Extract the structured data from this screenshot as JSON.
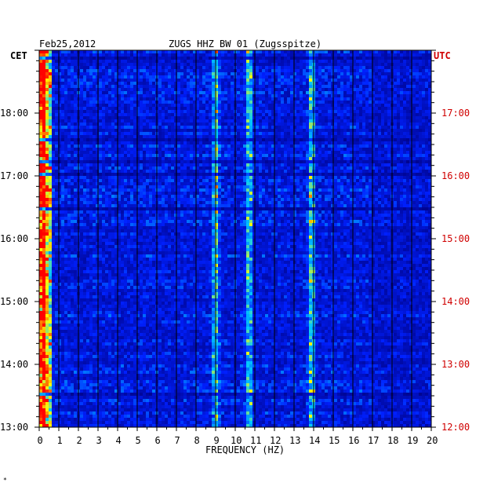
{
  "header": {
    "date": "Feb25,2012",
    "station": "ZUGS HHZ BW 01 (Zugsspitze)",
    "left_zone": "CET",
    "right_zone": "UTC"
  },
  "colors": {
    "background": "#0000a0",
    "utc_labels": "#d00000",
    "colormap": [
      "#000080",
      "#0020ff",
      "#00c8ff",
      "#ffff00",
      "#ff0000"
    ]
  },
  "chart_data": {
    "type": "heatmap",
    "title": "ZUGS HHZ BW 01 (Zugsspitze)",
    "xlabel": "FREQUENCY (HZ)",
    "x_ticks": [
      "0",
      "1",
      "2",
      "3",
      "4",
      "5",
      "6",
      "7",
      "8",
      "9",
      "10",
      "11",
      "12",
      "13",
      "14",
      "15",
      "16",
      "17",
      "18",
      "19",
      "20"
    ],
    "xlim": [
      0,
      20
    ],
    "cet_ticks": [
      "13:00",
      "14:00",
      "15:00",
      "16:00",
      "17:00",
      "18:00"
    ],
    "utc_ticks": [
      "12:00",
      "13:00",
      "14:00",
      "15:00",
      "16:00",
      "17:00"
    ],
    "time_range_cet": [
      "13:00",
      "18:50"
    ],
    "prominent_lines_hz": [
      0.2,
      9.0,
      10.7,
      13.9
    ],
    "grid": true
  },
  "footer": {
    "mark": "*"
  }
}
